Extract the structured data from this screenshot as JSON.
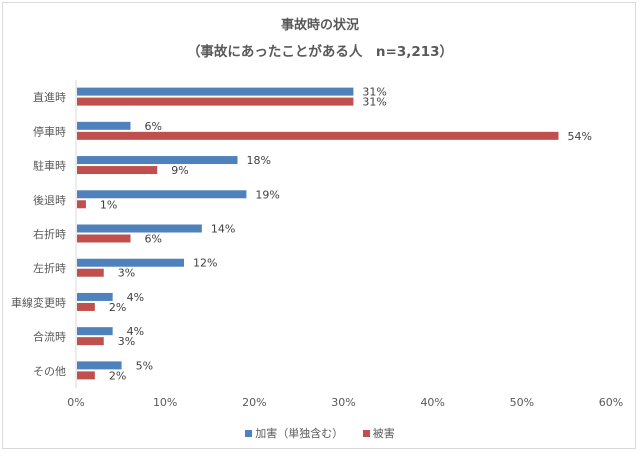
{
  "chart_data": {
    "type": "bar",
    "orientation": "horizontal",
    "title": "事故時の状況",
    "subtitle": "（事故にあったことがある人　n=3,213）",
    "categories": [
      "直進時",
      "停車時",
      "駐車時",
      "後退時",
      "右折時",
      "左折時",
      "車線変更時",
      "合流時",
      "その他"
    ],
    "series": [
      {
        "name": "加害（単独含む）",
        "color": "#4F81BD",
        "values": [
          31,
          6,
          18,
          19,
          14,
          12,
          4,
          4,
          5
        ]
      },
      {
        "name": "被害",
        "color": "#C0504D",
        "values": [
          31,
          54,
          9,
          1,
          6,
          3,
          2,
          3,
          2
        ]
      }
    ],
    "xlabel": "",
    "ylabel": "",
    "xlim": [
      0,
      60
    ],
    "xticks": [
      "0%",
      "10%",
      "20%",
      "30%",
      "40%",
      "50%",
      "60%"
    ],
    "grid": false,
    "legend_position": "bottom",
    "value_suffix": "%"
  },
  "header": {
    "title": "事故時の状況",
    "subtitle": "（事故にあったことがある人　n=3,213）"
  },
  "legend": {
    "items": [
      {
        "label": "加害（単独含む）",
        "color": "#4F81BD"
      },
      {
        "label": "被害",
        "color": "#C0504D"
      }
    ]
  }
}
